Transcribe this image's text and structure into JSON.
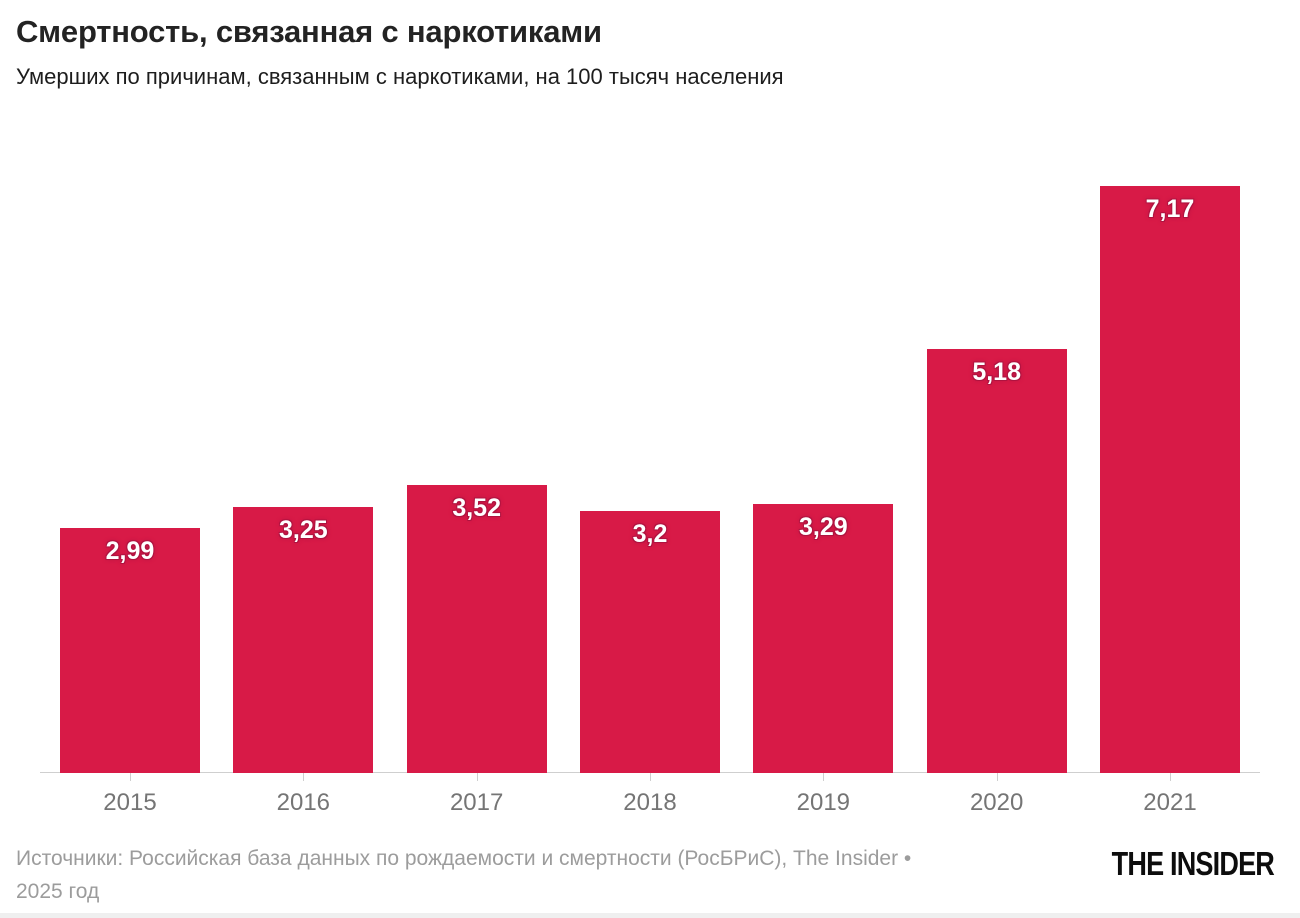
{
  "header": {
    "title": "Смертность, связанная с наркотиками",
    "subtitle": "Умерших по причинам, связанным с наркотиками, на 100 тысяч населения"
  },
  "chart_data": {
    "type": "bar",
    "categories": [
      "2015",
      "2016",
      "2017",
      "2018",
      "2019",
      "2020",
      "2021"
    ],
    "values": [
      2.99,
      3.25,
      3.52,
      3.2,
      3.29,
      5.18,
      7.17
    ],
    "value_labels": [
      "2,99",
      "3,25",
      "3,52",
      "3,2",
      "3,29",
      "5,18",
      "7,17"
    ],
    "title": "Смертность, связанная с наркотиками",
    "subtitle": "Умерших по причинам, связанным с наркотиками, на 100 тысяч населения",
    "xlabel": "",
    "ylabel": "",
    "ylim": [
      0,
      7.5
    ],
    "grid": false,
    "legend": "none",
    "value_labels_position": "inside-top",
    "bar_color": "#d81a47"
  },
  "footer": {
    "source_lines": [
      "Источники: Российская база данных по рождаемости и смертности (РосБРиС), The Insider •",
      "2025 год"
    ],
    "logo_text": "THE INSIDER"
  },
  "colors": {
    "background": "#ffffff",
    "bar": "#d81a47",
    "label_halo": "#b01340",
    "value_label": "#ffffff",
    "axis_line": "#cfcfcf",
    "tick": "#cfcfcf",
    "year_label": "#757575",
    "title": "#232323",
    "subtitle": "#1d1d1d",
    "source": "#9c9c9c",
    "logo": "#0d0d0d"
  }
}
